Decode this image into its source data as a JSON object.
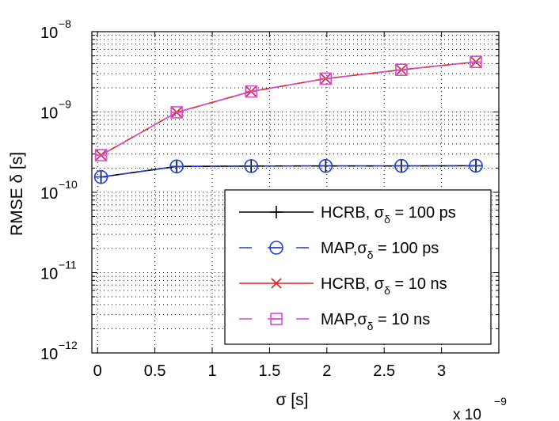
{
  "chart_data": {
    "type": "line",
    "title": "",
    "xlabel": "σ [s]",
    "ylabel": "RMSE δ [s]",
    "x_scale_label": "x 10",
    "x_scale_exp": "−9",
    "x_multiplier": 1e-09,
    "y_scale": "log",
    "xlim": [
      -0.05,
      3.5
    ],
    "ylim_exponents": [
      -12,
      -8
    ],
    "grid": true,
    "x_ticks": [
      0,
      0.5,
      1,
      1.5,
      2,
      2.5,
      3
    ],
    "x_tick_labels": [
      "0",
      "0.5",
      "1",
      "1.5",
      "2",
      "2.5",
      "3"
    ],
    "y_ticks": [
      -12,
      -11,
      -10,
      -9,
      -8
    ],
    "y_tick_base": "10",
    "y_tick_exponents": [
      "−12",
      "−11",
      "−10",
      "−9",
      "−8"
    ],
    "legend_position": "bottom-right",
    "x": [
      0.03,
      0.69,
      1.34,
      1.99,
      2.65,
      3.3
    ],
    "series": [
      {
        "name": "HCRB, σδ = 100 ps",
        "label_main": "HCRB, σ",
        "label_sub": "δ",
        "label_rest": " = 100 ps",
        "color": "#000000",
        "dash": "",
        "marker": "plus",
        "values": [
          1.55e-10,
          2.1e-10,
          2.12e-10,
          2.13e-10,
          2.13e-10,
          2.14e-10
        ]
      },
      {
        "name": "MAP, σδ = 100 ps",
        "label_main": "MAP,σ",
        "label_sub": "δ",
        "label_rest": " = 100 ps",
        "color": "#1f3fd9",
        "dash": "14,9",
        "marker": "circle",
        "values": [
          1.55e-10,
          2.1e-10,
          2.12e-10,
          2.13e-10,
          2.13e-10,
          2.14e-10
        ]
      },
      {
        "name": "HCRB, σδ = 10 ns",
        "label_main": "HCRB, σ",
        "label_sub": "δ",
        "label_rest": " = 10 ns",
        "color": "#e0201e",
        "dash": "",
        "marker": "x",
        "values": [
          2.9e-10,
          9.9e-10,
          1.8e-09,
          2.6e-09,
          3.35e-09,
          4.2e-09
        ]
      },
      {
        "name": "MAP, σδ = 10 ns",
        "label_main": "MAP,σ",
        "label_sub": "δ",
        "label_rest": " = 10 ns",
        "color": "#d24cd6",
        "dash": "14,9",
        "marker": "square",
        "values": [
          2.9e-10,
          9.9e-10,
          1.8e-09,
          2.6e-09,
          3.35e-09,
          4.2e-09
        ]
      }
    ]
  }
}
